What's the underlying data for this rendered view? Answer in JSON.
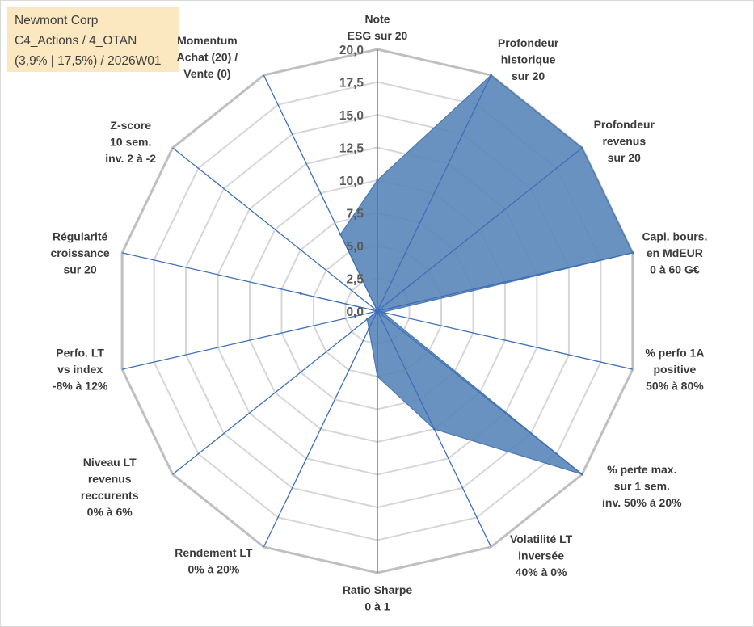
{
  "info": {
    "line1": "Newmont Corp",
    "line2": "C4_Actions / 4_OTAN",
    "line3": "(3,9% | 17,5%) / 2026W01"
  },
  "chart_data": {
    "type": "radar",
    "rmin": 0,
    "rmax": 20,
    "tick_step": 2.5,
    "tick_labels": [
      "0,0",
      "2,5",
      "5,0",
      "7,5",
      "10,0",
      "12,5",
      "15,0",
      "17,5",
      "20,0"
    ],
    "series": [
      {
        "name": "Newmont Corp",
        "color": "#5a86ba",
        "values": [
          10.0,
          20.0,
          20.0,
          20.0,
          0.4,
          20.0,
          10.0,
          5.0,
          1.5,
          1.0,
          0.0,
          6.0,
          0.0,
          6.5
        ]
      }
    ],
    "axes": [
      [
        "Note",
        "ESG sur 20"
      ],
      [
        "Profondeur",
        "historique",
        "sur 20"
      ],
      [
        "Profondeur",
        "revenus",
        "sur 20"
      ],
      [
        "Capi. bours.",
        "en MdEUR",
        "0 à 60 G€"
      ],
      [
        "% perfo 1A",
        "positive",
        "50% à 80%"
      ],
      [
        "% perte max.",
        "sur 1 sem.",
        "inv. 50% à 20%"
      ],
      [
        "Volatilité LT",
        "inversée",
        "40% à 0%"
      ],
      [
        "Ratio Sharpe",
        "0 à 1"
      ],
      [
        "Rendement LT",
        "0% à 20%"
      ],
      [
        "Niveau LT",
        "revenus",
        "reccurents",
        "0% à 6%"
      ],
      [
        "Perfo. LT",
        "vs index",
        "-8% à 12%"
      ],
      [
        "Régularité",
        "croissance",
        "sur 20"
      ],
      [
        "Z-score",
        "10 sem.",
        "inv. 2 à -2"
      ],
      [
        "Momentum",
        "Achat (20) /",
        "Vente (0)"
      ]
    ]
  }
}
